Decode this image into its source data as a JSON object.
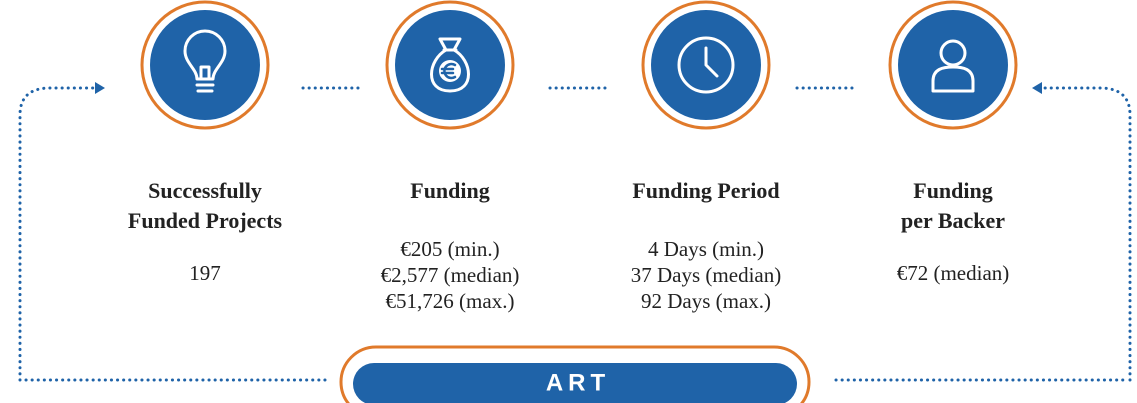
{
  "items": [
    {
      "title": [
        "Successfully",
        "Funded Projects"
      ],
      "values": [
        "197"
      ]
    },
    {
      "title": [
        "Funding"
      ],
      "values": [
        "€205 (min.)",
        "€2,577 (median)",
        "€51,726 (max.)"
      ]
    },
    {
      "title": [
        "Funding Period"
      ],
      "values": [
        "4 Days (min.)",
        "37 Days (median)",
        "92 Days (max.)"
      ]
    },
    {
      "title": [
        "Funding",
        "per Backer"
      ],
      "values": [
        "€72 (median)"
      ]
    }
  ],
  "banner": "ART"
}
